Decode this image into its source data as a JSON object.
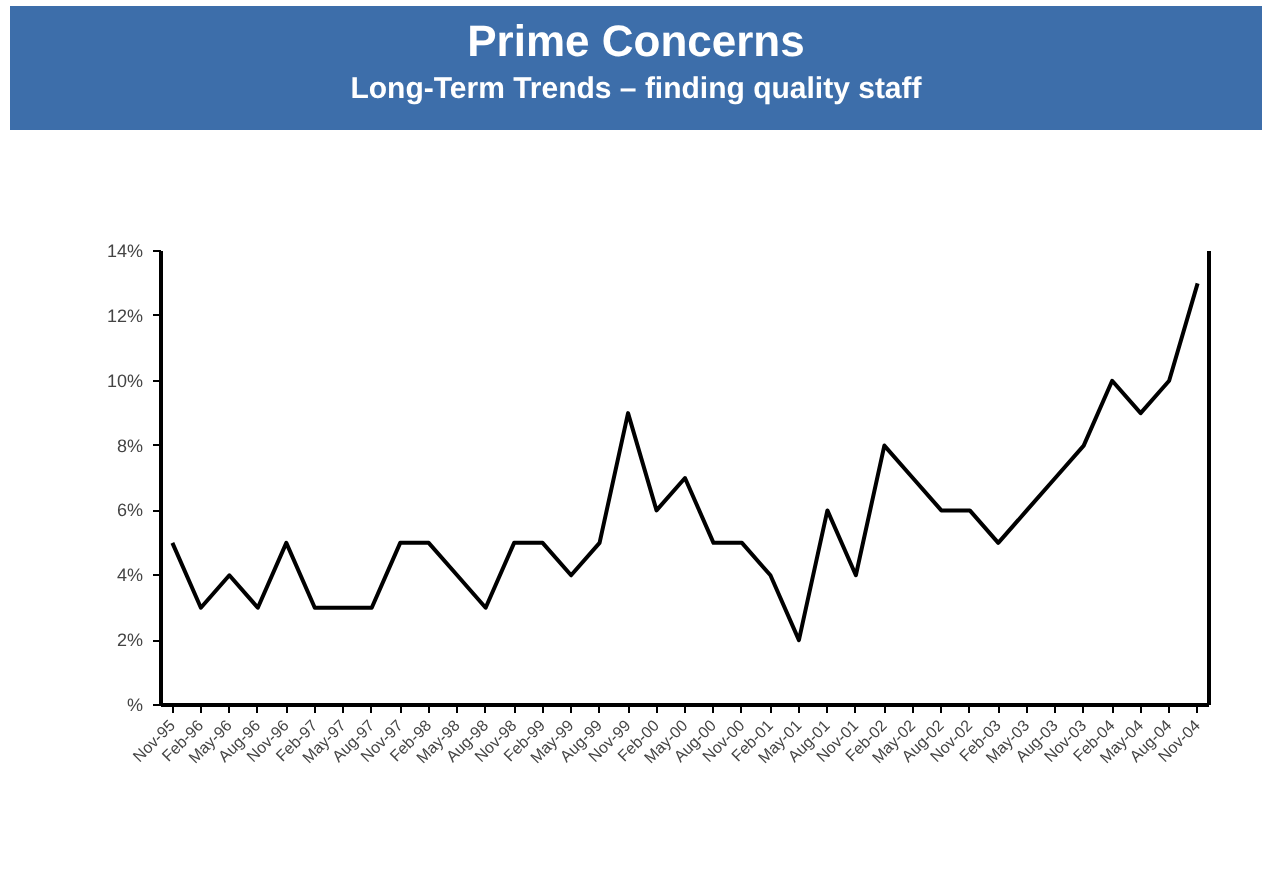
{
  "chart_data": {
    "type": "line",
    "title": "Prime Concerns",
    "subtitle": "Long-Term Trends – finding quality staff",
    "categories": [
      "Nov-95",
      "Feb-96",
      "May-96",
      "Aug-96",
      "Nov-96",
      "Feb-97",
      "May-97",
      "Aug-97",
      "Nov-97",
      "Feb-98",
      "May-98",
      "Aug-98",
      "Nov-98",
      "Feb-99",
      "May-99",
      "Aug-99",
      "Nov-99",
      "Feb-00",
      "May-00",
      "Aug-00",
      "Nov-00",
      "Feb-01",
      "May-01",
      "Aug-01",
      "Nov-01",
      "Feb-02",
      "May-02",
      "Aug-02",
      "Nov-02",
      "Feb-03",
      "May-03",
      "Aug-03",
      "Nov-03",
      "Feb-04",
      "May-04",
      "Aug-04",
      "Nov-04"
    ],
    "series": [
      {
        "color": "#000000",
        "values": [
          5,
          3,
          4,
          3,
          5,
          3,
          3,
          3,
          5,
          5,
          4,
          3,
          5,
          5,
          4,
          5,
          9,
          6,
          7,
          5,
          5,
          4,
          2,
          6,
          4,
          8,
          7,
          6,
          6,
          5,
          6,
          7,
          8,
          10,
          9,
          10,
          13
        ]
      }
    ],
    "ylim": [
      0,
      14
    ],
    "yticks": [
      {
        "value": 0,
        "label": "%"
      },
      {
        "value": 2,
        "label": "2%"
      },
      {
        "value": 4,
        "label": "4%"
      },
      {
        "value": 6,
        "label": "6%"
      },
      {
        "value": 8,
        "label": "8%"
      },
      {
        "value": 10,
        "label": "10%"
      },
      {
        "value": 12,
        "label": "12%"
      },
      {
        "value": 14,
        "label": "14%"
      }
    ],
    "grid": false,
    "marker": "none",
    "line_style": "solid"
  }
}
